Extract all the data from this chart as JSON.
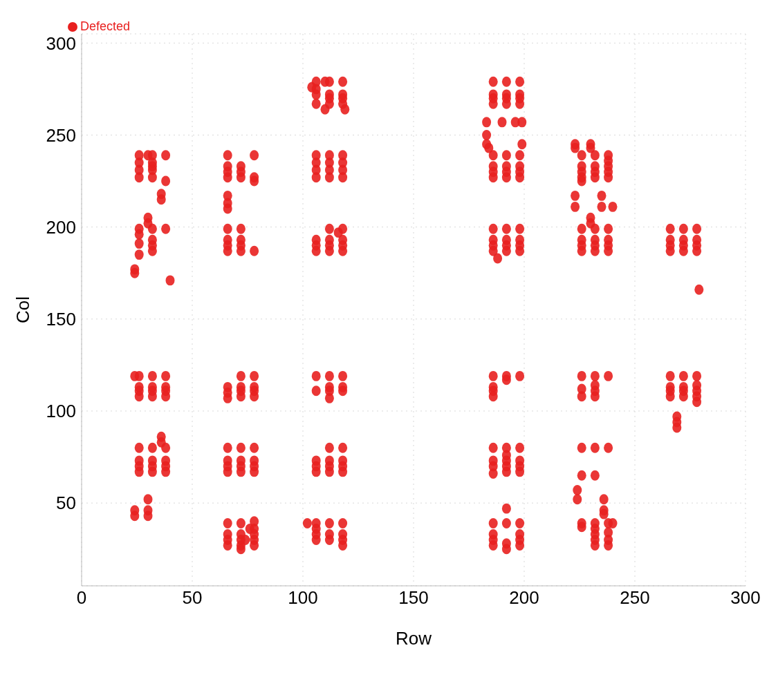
{
  "chart_data": {
    "type": "scatter",
    "xlabel": "Row",
    "ylabel": "Col",
    "xlim": [
      0,
      300
    ],
    "ylim": [
      5,
      305
    ],
    "xticks": [
      0,
      50,
      100,
      150,
      200,
      250,
      300
    ],
    "yticks": [
      50,
      100,
      150,
      200,
      250,
      300
    ],
    "grid": true,
    "legend": "top left",
    "marker": "circle",
    "series": [
      {
        "name": "Defected",
        "color": "#e8201f",
        "x": [
          26,
          26,
          26,
          26,
          30,
          32,
          32,
          32,
          32,
          32,
          38,
          38,
          36,
          36,
          26,
          26,
          26,
          26,
          30,
          30,
          32,
          32,
          32,
          32,
          38,
          40,
          24,
          24,
          66,
          66,
          66,
          66,
          66,
          66,
          66,
          72,
          72,
          72,
          78,
          78,
          78,
          66,
          66,
          66,
          66,
          72,
          72,
          72,
          72,
          78,
          104,
          106,
          106,
          106,
          106,
          110,
          112,
          112,
          112,
          112,
          110,
          118,
          118,
          118,
          118,
          119,
          106,
          106,
          106,
          106,
          112,
          112,
          112,
          112,
          118,
          118,
          118,
          118,
          106,
          106,
          106,
          112,
          112,
          112,
          112,
          116,
          118,
          118,
          118,
          118,
          186,
          186,
          186,
          186,
          192,
          192,
          192,
          192,
          198,
          198,
          198,
          198,
          183,
          190,
          196,
          199,
          183,
          183,
          184,
          199,
          186,
          186,
          186,
          186,
          192,
          192,
          192,
          192,
          198,
          198,
          198,
          198,
          186,
          186,
          186,
          186,
          192,
          192,
          192,
          192,
          198,
          198,
          198,
          198,
          188,
          223,
          223,
          230,
          230,
          226,
          226,
          226,
          226,
          226,
          232,
          232,
          232,
          232,
          238,
          238,
          238,
          238,
          238,
          223,
          223,
          235,
          235,
          240,
          230,
          230,
          226,
          226,
          226,
          226,
          232,
          232,
          232,
          232,
          238,
          238,
          238,
          238,
          266,
          266,
          266,
          266,
          272,
          272,
          272,
          272,
          278,
          278,
          278,
          278,
          279,
          24,
          26,
          26,
          26,
          26,
          32,
          32,
          32,
          32,
          38,
          38,
          38,
          38,
          26,
          26,
          26,
          26,
          32,
          32,
          32,
          32,
          38,
          38,
          38,
          38,
          36,
          36,
          24,
          24,
          30,
          30,
          30,
          66,
          66,
          66,
          72,
          72,
          72,
          72,
          78,
          78,
          78,
          78,
          66,
          66,
          66,
          66,
          72,
          72,
          72,
          72,
          78,
          78,
          78,
          78,
          66,
          66,
          66,
          66,
          72,
          72,
          72,
          72,
          72,
          74,
          76,
          78,
          78,
          78,
          78,
          78,
          106,
          106,
          112,
          112,
          112,
          112,
          118,
          118,
          118,
          106,
          106,
          106,
          112,
          112,
          112,
          112,
          118,
          118,
          118,
          118,
          102,
          106,
          106,
          106,
          106,
          112,
          112,
          112,
          118,
          118,
          118,
          118,
          186,
          186,
          186,
          186,
          192,
          192,
          198,
          186,
          186,
          186,
          186,
          192,
          192,
          192,
          192,
          192,
          198,
          198,
          198,
          198,
          186,
          186,
          186,
          186,
          192,
          192,
          192,
          192,
          198,
          198,
          198,
          198,
          226,
          226,
          226,
          232,
          232,
          232,
          232,
          238,
          266,
          266,
          266,
          266,
          272,
          272,
          272,
          272,
          278,
          278,
          278,
          278,
          278,
          269,
          269,
          269,
          226,
          232,
          238,
          226,
          232,
          224,
          224,
          236,
          236,
          236,
          238,
          240,
          226,
          226,
          232,
          232,
          232,
          232,
          232,
          238,
          238,
          238
        ],
        "values": [
          239,
          235,
          231,
          227,
          239,
          239,
          235,
          233,
          231,
          227,
          239,
          225,
          218,
          215,
          199,
          196,
          191,
          185,
          205,
          202,
          199,
          193,
          190,
          187,
          199,
          171,
          177,
          175,
          239,
          233,
          230,
          227,
          217,
          213,
          210,
          233,
          230,
          227,
          239,
          227,
          225,
          199,
          193,
          190,
          187,
          199,
          193,
          190,
          187,
          187,
          276,
          279,
          275,
          272,
          267,
          279,
          279,
          272,
          270,
          267,
          264,
          279,
          272,
          270,
          267,
          264,
          239,
          235,
          231,
          227,
          239,
          235,
          231,
          227,
          239,
          235,
          231,
          227,
          193,
          190,
          187,
          199,
          193,
          190,
          187,
          197,
          199,
          193,
          190,
          187,
          279,
          272,
          270,
          267,
          279,
          272,
          270,
          267,
          279,
          272,
          270,
          267,
          257,
          257,
          257,
          257,
          250,
          245,
          243,
          245,
          239,
          233,
          230,
          227,
          239,
          233,
          230,
          227,
          239,
          233,
          230,
          227,
          199,
          193,
          190,
          187,
          199,
          193,
          190,
          187,
          199,
          193,
          190,
          187,
          183,
          245,
          243,
          245,
          243,
          239,
          233,
          230,
          227,
          225,
          239,
          233,
          230,
          227,
          239,
          236,
          233,
          230,
          227,
          217,
          211,
          217,
          211,
          211,
          205,
          202,
          199,
          193,
          190,
          187,
          199,
          193,
          190,
          187,
          199,
          193,
          190,
          187,
          199,
          193,
          190,
          187,
          199,
          193,
          190,
          187,
          199,
          193,
          190,
          187,
          166,
          119,
          119,
          113,
          111,
          108,
          119,
          113,
          111,
          108,
          119,
          113,
          111,
          108,
          80,
          73,
          70,
          67,
          80,
          73,
          70,
          67,
          80,
          73,
          70,
          67,
          86,
          83,
          46,
          43,
          52,
          46,
          43,
          113,
          110,
          107,
          119,
          113,
          111,
          108,
          119,
          113,
          111,
          108,
          80,
          73,
          70,
          67,
          80,
          73,
          70,
          67,
          80,
          73,
          70,
          67,
          39,
          33,
          30,
          27,
          39,
          33,
          30,
          27,
          25,
          30,
          36,
          40,
          36,
          33,
          30,
          27,
          119,
          111,
          119,
          113,
          111,
          107,
          119,
          113,
          111,
          73,
          70,
          67,
          80,
          73,
          70,
          67,
          80,
          73,
          70,
          67,
          39,
          39,
          36,
          33,
          30,
          39,
          33,
          30,
          39,
          33,
          30,
          27,
          119,
          113,
          111,
          108,
          119,
          117,
          119,
          80,
          73,
          70,
          66,
          80,
          76,
          73,
          70,
          67,
          80,
          73,
          70,
          67,
          39,
          33,
          30,
          27,
          47,
          39,
          28,
          25,
          39,
          33,
          30,
          27,
          119,
          112,
          108,
          119,
          114,
          111,
          108,
          119,
          119,
          113,
          111,
          108,
          119,
          113,
          111,
          108,
          119,
          114,
          111,
          108,
          105,
          97,
          94,
          91,
          80,
          80,
          80,
          65,
          65,
          57,
          52,
          52,
          46,
          44,
          39,
          39,
          39,
          37,
          39,
          36,
          33,
          30,
          27,
          34,
          30,
          27
        ]
      }
    ]
  }
}
